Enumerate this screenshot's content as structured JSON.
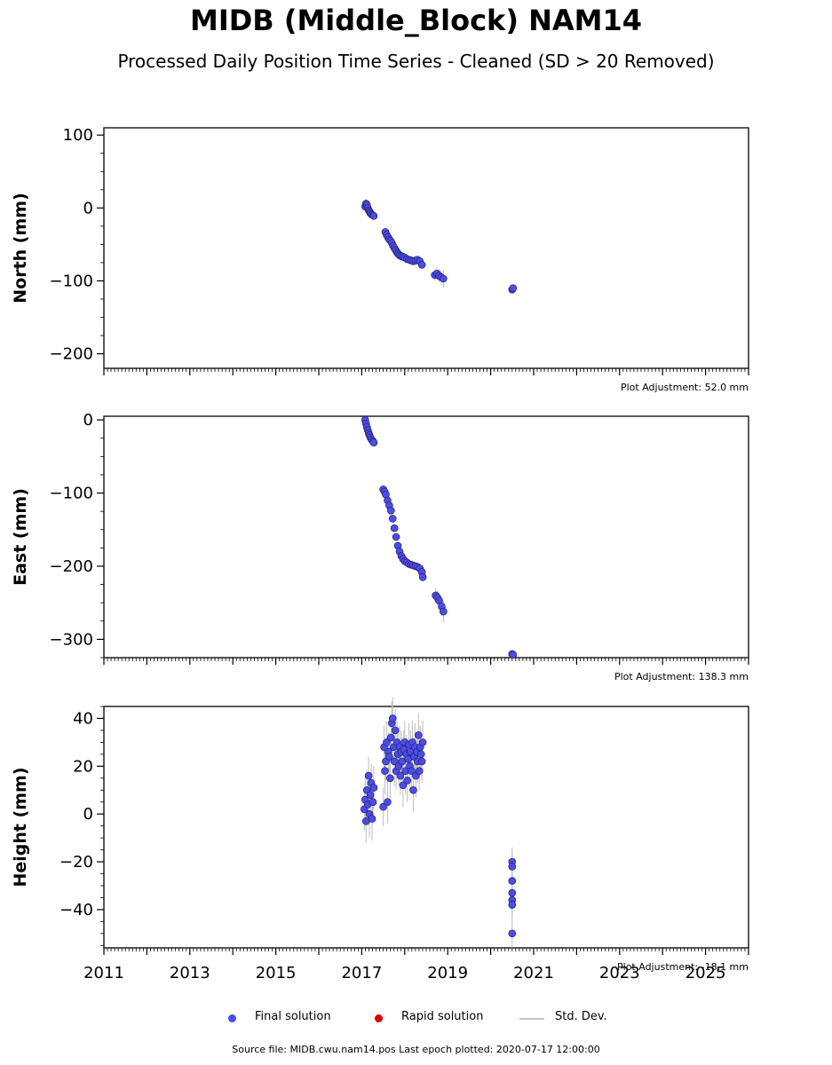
{
  "title": "MIDB (Middle_Block) NAM14",
  "subtitle": "Processed Daily Position Time Series - Cleaned (SD > 20 Removed)",
  "footer": "Source file: MIDB.cwu.nam14.pos  Last epoch plotted: 2020-07-17 12:00:00",
  "legend": {
    "final": "Final solution",
    "rapid": "Rapid solution",
    "std": "Std. Dev."
  },
  "colors": {
    "final": "#4b4bef",
    "rapid": "#dd0000",
    "std": "#bdbdbd"
  },
  "chart_data": [
    {
      "type": "scatter",
      "ylabel": "North (mm)",
      "adjustment": "Plot Adjustment: 52.0 mm",
      "xlim": [
        2011,
        2026
      ],
      "ylim": [
        -220,
        110
      ],
      "yticks": [
        100,
        0,
        -100,
        -200
      ],
      "x": [
        2017.08,
        2017.1,
        2017.12,
        2017.14,
        2017.16,
        2017.18,
        2017.2,
        2017.23,
        2017.26,
        2017.28,
        2017.55,
        2017.58,
        2017.61,
        2017.64,
        2017.67,
        2017.7,
        2017.73,
        2017.76,
        2017.79,
        2017.82,
        2017.85,
        2017.88,
        2017.92,
        2017.96,
        2018.0,
        2018.05,
        2018.1,
        2018.15,
        2018.2,
        2018.25,
        2018.3,
        2018.35,
        2018.4,
        2018.7,
        2018.75,
        2018.8,
        2018.85,
        2018.9,
        2020.5,
        2020.52
      ],
      "y": [
        2,
        6,
        4,
        0,
        -3,
        -5,
        -7,
        -9,
        -10,
        -11,
        -33,
        -37,
        -40,
        -43,
        -45,
        -48,
        -52,
        -55,
        -58,
        -61,
        -63,
        -65,
        -66,
        -67,
        -68,
        -70,
        -71,
        -72,
        -73,
        -72,
        -71,
        -73,
        -78,
        -92,
        -90,
        -93,
        -95,
        -97,
        -112,
        -110
      ],
      "sd": [
        7,
        6,
        6,
        6,
        5,
        5,
        5,
        5,
        5,
        5,
        4,
        4,
        4,
        4,
        4,
        4,
        4,
        4,
        4,
        4,
        4,
        4,
        4,
        4,
        4,
        4,
        4,
        4,
        4,
        4,
        4,
        4,
        5,
        8,
        8,
        9,
        10,
        12,
        4,
        4
      ]
    },
    {
      "type": "scatter",
      "ylabel": "East (mm)",
      "adjustment": "Plot Adjustment: 138.3 mm",
      "xlim": [
        2011,
        2026
      ],
      "ylim": [
        -325,
        5
      ],
      "yticks": [
        0,
        -100,
        -200,
        -300
      ],
      "x": [
        2017.08,
        2017.1,
        2017.12,
        2017.14,
        2017.16,
        2017.18,
        2017.2,
        2017.23,
        2017.26,
        2017.28,
        2017.5,
        2017.53,
        2017.56,
        2017.6,
        2017.64,
        2017.68,
        2017.72,
        2017.76,
        2017.8,
        2017.84,
        2017.88,
        2017.92,
        2017.96,
        2018.0,
        2018.05,
        2018.1,
        2018.15,
        2018.2,
        2018.25,
        2018.3,
        2018.35,
        2018.4,
        2018.42,
        2018.72,
        2018.76,
        2018.8,
        2018.86,
        2018.9,
        2020.5,
        2020.52
      ],
      "y": [
        0,
        -5,
        -10,
        -14,
        -18,
        -21,
        -24,
        -27,
        -29,
        -31,
        -95,
        -98,
        -102,
        -110,
        -117,
        -124,
        -135,
        -148,
        -160,
        -172,
        -180,
        -186,
        -190,
        -193,
        -195,
        -197,
        -198,
        -199,
        -200,
        -201,
        -203,
        -208,
        -215,
        -240,
        -243,
        -247,
        -255,
        -262,
        -320,
        -321
      ],
      "sd": [
        5,
        5,
        5,
        5,
        5,
        5,
        5,
        5,
        5,
        5,
        5,
        5,
        5,
        5,
        5,
        5,
        5,
        5,
        5,
        5,
        5,
        5,
        5,
        5,
        5,
        5,
        5,
        5,
        5,
        5,
        5,
        6,
        6,
        10,
        10,
        11,
        13,
        15,
        4,
        4
      ]
    },
    {
      "type": "scatter",
      "ylabel": "Height (mm)",
      "adjustment": "Plot Adjustment: -18.1 mm",
      "xlim": [
        2011,
        2026
      ],
      "ylim": [
        -56,
        45
      ],
      "yticks": [
        40,
        20,
        0,
        -20,
        -40
      ],
      "xticks": [
        "2011",
        "2013",
        "2015",
        "2017",
        "2019",
        "2021",
        "2023",
        "2025"
      ],
      "x": [
        2017.06,
        2017.08,
        2017.1,
        2017.12,
        2017.14,
        2017.16,
        2017.18,
        2017.2,
        2017.22,
        2017.24,
        2017.26,
        2017.28,
        2017.5,
        2017.52,
        2017.54,
        2017.56,
        2017.58,
        2017.6,
        2017.62,
        2017.64,
        2017.66,
        2017.68,
        2017.7,
        2017.72,
        2017.74,
        2017.76,
        2017.78,
        2017.8,
        2017.82,
        2017.84,
        2017.86,
        2017.88,
        2017.9,
        2017.92,
        2017.94,
        2017.96,
        2017.98,
        2018.0,
        2018.02,
        2018.04,
        2018.06,
        2018.08,
        2018.1,
        2018.12,
        2018.14,
        2018.16,
        2018.18,
        2018.2,
        2018.22,
        2018.24,
        2018.26,
        2018.28,
        2018.3,
        2018.32,
        2018.34,
        2018.36,
        2018.38,
        2018.4,
        2018.42,
        2020.5,
        2020.5,
        2020.5,
        2020.5,
        2020.5,
        2020.5,
        2020.5
      ],
      "y": [
        2,
        6,
        -3,
        10,
        4,
        16,
        0,
        8,
        13,
        -2,
        5,
        11,
        3,
        28,
        18,
        22,
        30,
        5,
        26,
        24,
        15,
        32,
        38,
        40,
        28,
        22,
        35,
        18,
        30,
        25,
        20,
        28,
        16,
        26,
        22,
        12,
        27,
        30,
        18,
        25,
        14,
        23,
        29,
        20,
        26,
        18,
        30,
        10,
        24,
        28,
        16,
        26,
        22,
        33,
        18,
        28,
        25,
        22,
        30,
        -20,
        -22,
        -28,
        -33,
        -36,
        -38,
        -50
      ],
      "sd": [
        9,
        10,
        9,
        8,
        9,
        8,
        10,
        9,
        8,
        9,
        8,
        9,
        8,
        9,
        10,
        8,
        9,
        9,
        8,
        10,
        9,
        8,
        9,
        9,
        8,
        10,
        9,
        8,
        9,
        10,
        8,
        9,
        8,
        9,
        10,
        9,
        8,
        9,
        10,
        8,
        9,
        8,
        9,
        10,
        9,
        8,
        9,
        9,
        8,
        10,
        9,
        8,
        9,
        9,
        8,
        9,
        8,
        9,
        9,
        6,
        6,
        6,
        6,
        6,
        6,
        6
      ]
    }
  ]
}
